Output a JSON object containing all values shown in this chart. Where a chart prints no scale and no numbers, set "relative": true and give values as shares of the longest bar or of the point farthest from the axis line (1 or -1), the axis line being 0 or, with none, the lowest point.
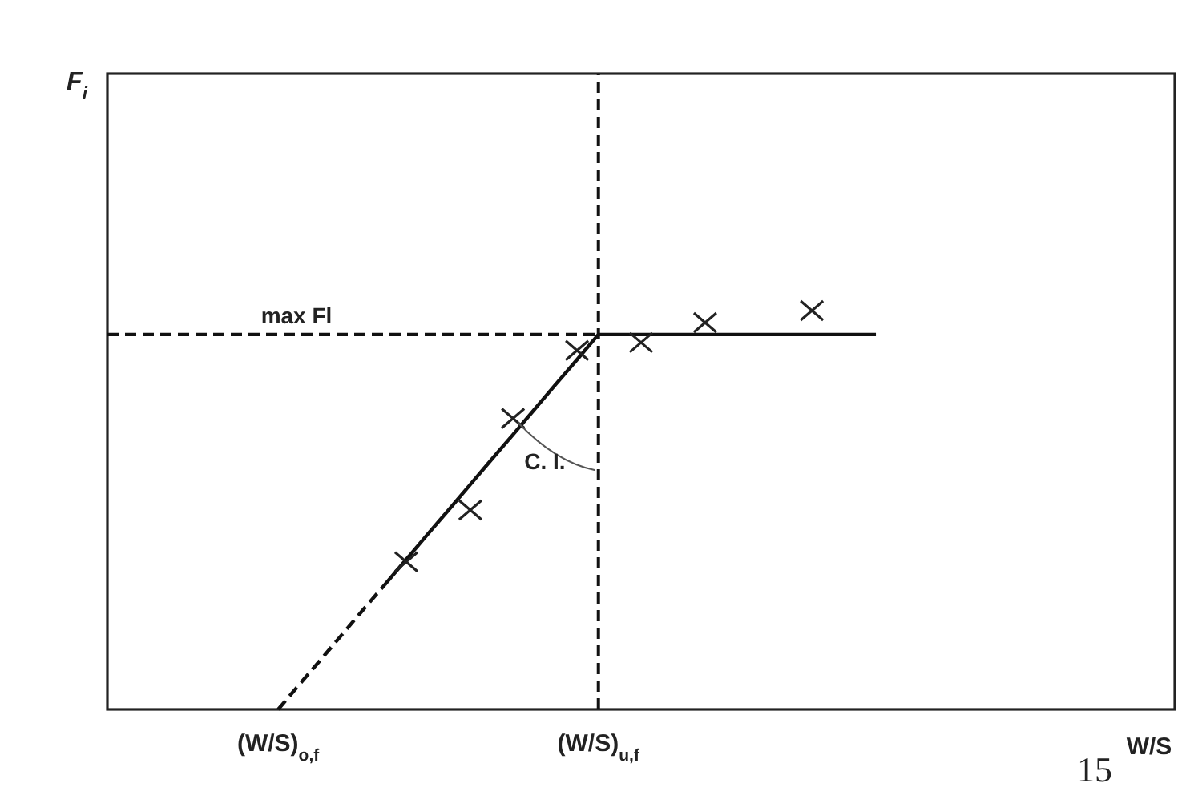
{
  "chart_data": {
    "type": "line",
    "relative": true,
    "xlabel": "W/S",
    "categories": [
      null,
      null,
      null,
      null,
      null,
      null,
      null,
      null,
      "(W/S)$_{o,f}$",
      null,
      null,
      null,
      null,
      null,
      null,
      null,
      null,
      null,
      null,
      null,
      null,
      null,
      null,
      "(W/S)$_{u,f}$",
      null,
      null,
      null,
      null,
      null,
      null,
      null,
      null,
      null,
      null,
      null,
      null,
      null,
      null,
      null,
      null,
      null,
      null,
      null,
      null,
      null,
      null,
      null,
      null,
      null,
      null,
      null
    ],
    "series": [
      {
        "color": "#111111",
        "line_style": "dashed",
        "values": [
          null,
          null,
          null,
          null,
          null,
          null,
          null,
          null,
          0,
          0.063,
          0.125,
          0.188,
          0.251,
          0.313,
          null,
          null,
          null,
          null,
          null,
          null,
          null,
          null,
          null,
          null,
          null,
          null,
          null,
          null,
          null,
          null,
          null,
          null,
          null,
          null,
          null,
          null,
          null,
          null,
          null,
          null,
          null,
          null,
          null,
          null,
          null,
          null,
          null,
          null,
          null,
          null,
          null
        ]
      },
      {
        "color": "#111111",
        "line_style": "solid",
        "values": [
          null,
          null,
          null,
          null,
          null,
          null,
          null,
          null,
          null,
          null,
          null,
          null,
          null,
          0.313,
          0.376,
          0.439,
          0.501,
          0.564,
          0.627,
          0.689,
          0.752,
          0.815,
          0.877,
          0.94,
          0.94,
          0.94,
          0.94,
          0.94,
          0.94,
          0.94,
          0.94,
          0.94,
          0.94,
          0.94,
          0.94,
          0.94,
          0.94,
          null,
          null,
          null,
          null,
          null,
          null,
          null,
          null,
          null,
          null,
          null,
          null,
          null,
          null
        ]
      },
      {
        "color": "#111111",
        "line_style": "dashed",
        "values": [
          0.94,
          0.94,
          0.94,
          0.94,
          0.94,
          0.94,
          0.94,
          0.94,
          0.94,
          0.94,
          0.94,
          0.94,
          0.94,
          0.94,
          0.94,
          0.94,
          0.94,
          0.94,
          0.94,
          0.94,
          0.94,
          0.94,
          0.94,
          0.94,
          null,
          null,
          null,
          null,
          null,
          null,
          null,
          null,
          null,
          null,
          null,
          null,
          null,
          null,
          null,
          null,
          null,
          null,
          null,
          null,
          null,
          null,
          null,
          null,
          null,
          null,
          null
        ]
      },
      {
        "type": "scatter",
        "color": "#222222",
        "marker": "cross",
        "values": [
          null,
          null,
          null,
          null,
          null,
          null,
          null,
          null,
          null,
          null,
          null,
          null,
          null,
          null,
          0.37,
          null,
          null,
          0.5,
          null,
          0.73,
          null,
          null,
          0.9,
          null,
          null,
          0.92,
          null,
          null,
          0.97,
          null,
          null,
          null,
          null,
          1,
          null,
          null,
          null,
          null,
          null,
          null,
          null,
          null,
          null,
          null,
          null,
          null,
          null,
          null,
          null,
          null,
          null
        ]
      }
    ],
    "ref_lines": [
      {
        "axis": "x",
        "value": "(W/S)$_{u,f}$",
        "line_style": "dashed",
        "color": "#111111"
      }
    ],
    "annotations": [
      "F$_{i}$",
      "max Fl",
      "C. I.",
      "15"
    ]
  }
}
